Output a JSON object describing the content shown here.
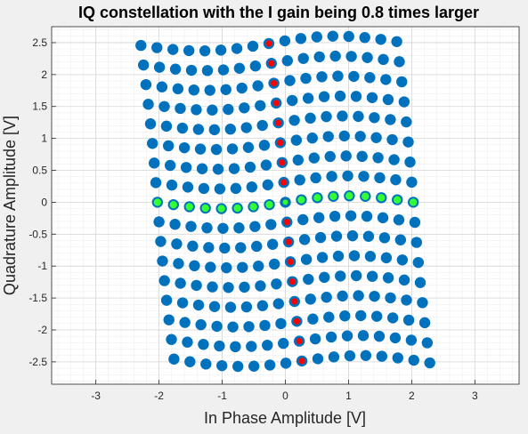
{
  "chart_data": {
    "type": "scatter",
    "title": "IQ constellation with the I gain being 0.8 times larger",
    "xlabel": "In Phase Amplitude [V]",
    "ylabel": "Quadrature Amplitude [V]",
    "xlim": [
      -3.7,
      3.7
    ],
    "ylim": [
      -2.85,
      2.75
    ],
    "xticks": [
      -3,
      -2,
      -1,
      0,
      1,
      2,
      3
    ],
    "xtick_labels": [
      "-3",
      "-2",
      "-1",
      "0",
      "1",
      "2",
      "3"
    ],
    "yticks": [
      -2.5,
      -2,
      -1.5,
      -1,
      -0.5,
      0,
      0.5,
      1,
      1.5,
      2,
      2.5
    ],
    "ytick_labels": [
      "-2.5",
      "-2",
      "-1.5",
      "-1",
      "-0.5",
      "0",
      "0.5",
      "1",
      "1.5",
      "2",
      "2.5"
    ],
    "grid": true,
    "minor_grid": true,
    "colors": {
      "blue": "#0072BD",
      "red": "#FF0000",
      "green": "#33FF33",
      "outline": "#1F5FA8"
    },
    "grid_definition": {
      "levels": 17,
      "level_step_V": 0.3125,
      "i_gain": 1.8,
      "phase_skew_deg": 6,
      "bow_amplitude_V": 0.1
    }
  }
}
